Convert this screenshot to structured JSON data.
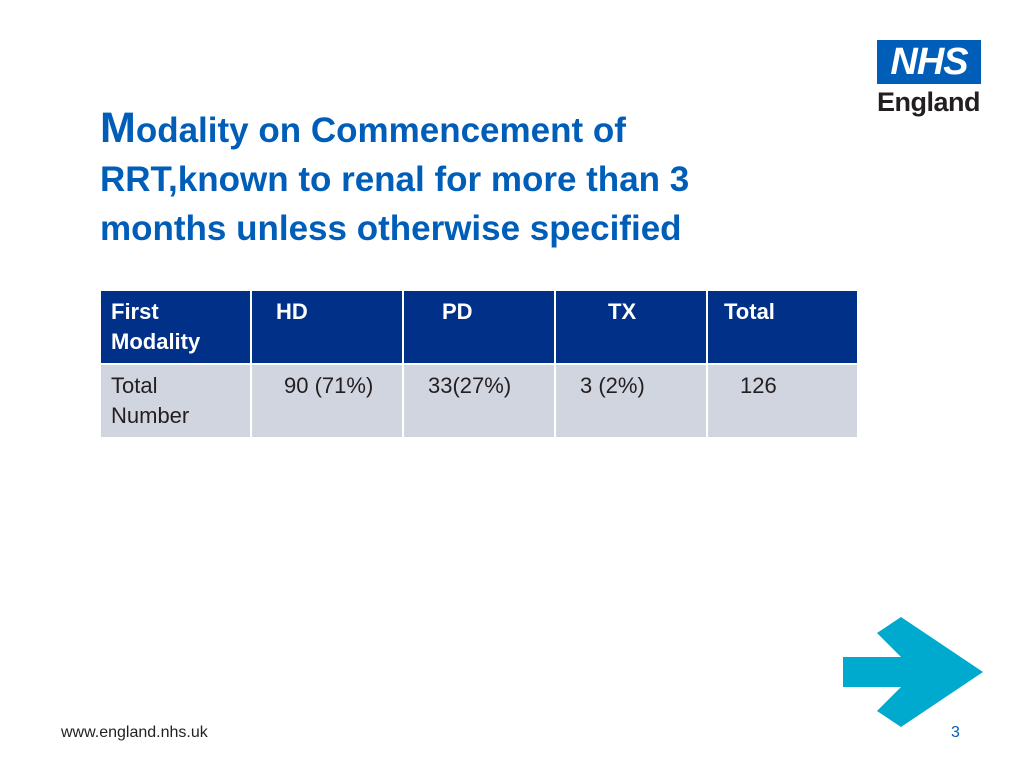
{
  "logo": {
    "mark": "NHS",
    "sub": "England"
  },
  "title": {
    "first_letter": "M",
    "rest": "odality on Commencement of RRT,known to renal for more than 3 months unless otherwise specified"
  },
  "table": {
    "headers": [
      "First Modality",
      "HD",
      "PD",
      "TX",
      "Total"
    ],
    "rows": [
      [
        "Total Number",
        "90 (71%)",
        "33(27%)",
        "3 (2%)",
        "126"
      ]
    ]
  },
  "footer": {
    "url": "www.england.nhs.uk",
    "page": "3"
  },
  "colors": {
    "nhs_blue": "#005eb8",
    "header_navy": "#003087",
    "row_grey": "#d1d5e0",
    "arrow": "#00a9ce"
  },
  "icons": {
    "next": "arrow-right-icon"
  }
}
